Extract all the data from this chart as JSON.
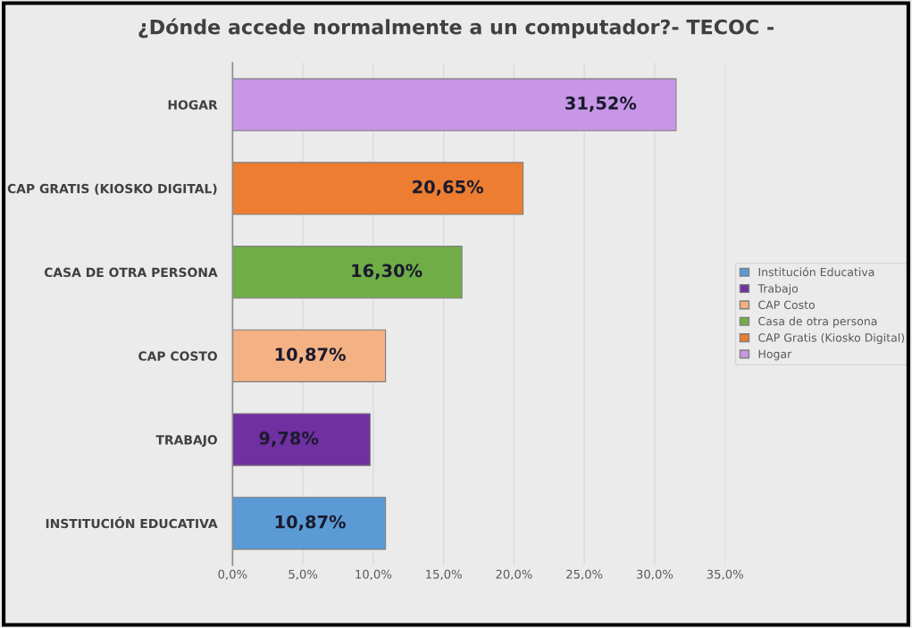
{
  "chart_data": {
    "type": "bar",
    "orientation": "horizontal",
    "title": "¿Dónde accede normalmente a un computador?- TECOC -",
    "categories": [
      "HOGAR",
      "CAP GRATIS (KIOSKO DIGITAL)",
      "CASA DE OTRA PERSONA",
      "CAP COSTO",
      "TRABAJO",
      "INSTITUCIÓN EDUCATIVA"
    ],
    "series": [
      {
        "name": "Institución Educativa",
        "color": "#5b9bd5",
        "values": [
          null,
          null,
          null,
          null,
          null,
          10.87
        ],
        "value_labels": [
          null,
          null,
          null,
          null,
          null,
          "10,87%"
        ]
      },
      {
        "name": "Trabajo",
        "color": "#7030a0",
        "values": [
          null,
          null,
          null,
          null,
          9.78,
          null
        ],
        "value_labels": [
          null,
          null,
          null,
          null,
          "9,78%",
          null
        ]
      },
      {
        "name": "CAP Costo",
        "color": "#f4b183",
        "values": [
          null,
          null,
          null,
          10.87,
          null,
          null
        ],
        "value_labels": [
          null,
          null,
          null,
          "10,87%",
          null,
          null
        ]
      },
      {
        "name": "Casa de otra persona",
        "color": "#70ad47",
        "values": [
          null,
          null,
          16.3,
          null,
          null,
          null
        ],
        "value_labels": [
          null,
          null,
          "16,30%",
          null,
          null,
          null
        ]
      },
      {
        "name": "CAP Gratis (Kiosko Digital)",
        "color": "#ed7d31",
        "values": [
          null,
          20.65,
          null,
          null,
          null,
          null
        ],
        "value_labels": [
          null,
          "20,65%",
          null,
          null,
          null,
          null
        ]
      },
      {
        "name": "Hogar",
        "color": "#c896e6",
        "values": [
          31.52,
          null,
          null,
          null,
          null,
          null
        ],
        "value_labels": [
          "31,52%",
          null,
          null,
          null,
          null,
          null
        ]
      }
    ],
    "xlim": [
      0,
      35
    ],
    "xticks": [
      {
        "value": 0,
        "label": "0,0%"
      },
      {
        "value": 5,
        "label": "5,0%"
      },
      {
        "value": 10,
        "label": "10,0%"
      },
      {
        "value": 15,
        "label": "15,0%"
      },
      {
        "value": 20,
        "label": "20,0%"
      },
      {
        "value": 25,
        "label": "25,0%"
      },
      {
        "value": 30,
        "label": "30,0%"
      },
      {
        "value": 35,
        "label": "35,0%"
      }
    ],
    "grid": "x",
    "legend": "right"
  }
}
